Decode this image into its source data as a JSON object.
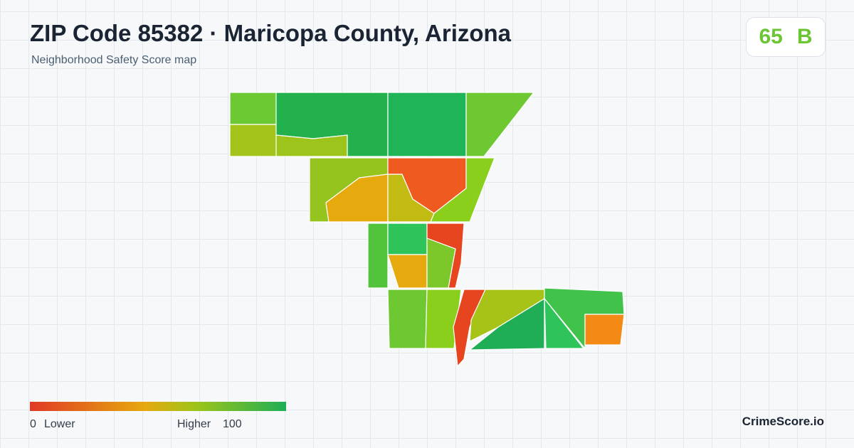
{
  "header": {
    "title": "ZIP Code 85382 · Maricopa County, Arizona",
    "subtitle": "Neighborhood Safety Score map"
  },
  "score": {
    "value": 65,
    "grade": "B"
  },
  "legend": {
    "min": 0,
    "min_label": "Lower",
    "max_label": "Higher",
    "max": 100
  },
  "brand": "CrimeScore.io"
}
